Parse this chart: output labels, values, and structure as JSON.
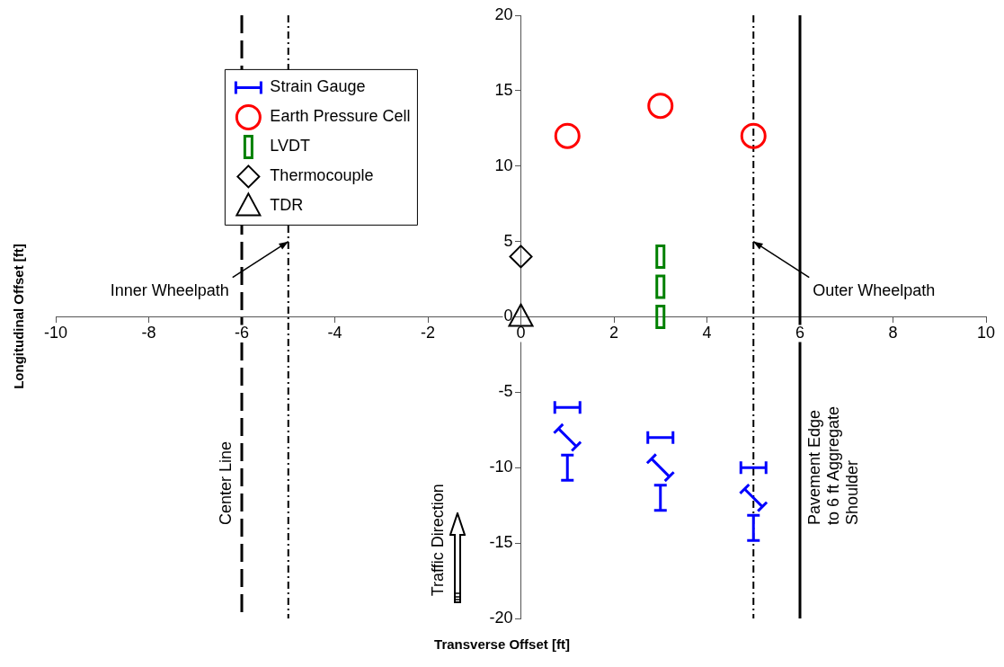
{
  "chart_data": {
    "type": "scatter",
    "xlabel": "Transverse Offset [ft]",
    "ylabel": "Longitudinal Offset [ft]",
    "series": [
      {
        "name": "Strain Gauge",
        "color": "#0000ff",
        "x": [
          1,
          3,
          5
        ],
        "values": [
          -6,
          -8,
          -10
        ]
      },
      {
        "color": "#0000ff",
        "x": [
          1,
          3,
          5
        ],
        "values": [
          -8,
          -10,
          -12
        ]
      },
      {
        "color": "#0000ff",
        "x": [
          1,
          3,
          5
        ],
        "values": [
          -10,
          -12,
          -14
        ]
      },
      {
        "name": "Earth Pressure Cell",
        "color": "#ff0000",
        "marker": "circle",
        "x": [
          1,
          3,
          5
        ],
        "values": [
          12,
          14,
          12
        ]
      },
      {
        "name": "LVDT",
        "color": "#008000",
        "marker": "square",
        "x": [
          3,
          3,
          3
        ],
        "values": [
          0,
          2,
          4
        ]
      },
      {
        "name": "Thermocouple",
        "color": "#000000",
        "marker": "diamond",
        "x": [
          0
        ],
        "values": [
          4
        ]
      },
      {
        "name": "TDR",
        "color": "#000000",
        "marker": "triangle",
        "x": [
          0
        ],
        "values": [
          0
        ]
      }
    ],
    "xlim": [
      -10,
      10
    ],
    "xticks": [
      -10,
      -8,
      -6,
      -4,
      -2,
      0,
      2,
      4,
      6,
      8,
      10
    ],
    "ylim": [
      -20,
      20
    ],
    "yticks": [
      -20,
      -15,
      -10,
      -5,
      0,
      5,
      10,
      15,
      20
    ],
    "ref_lines": [
      {
        "axis": "x",
        "value": -6,
        "label": "Center Line",
        "color": "#000000",
        "line_style": "dashed"
      },
      {
        "axis": "x",
        "value": -5,
        "color": "#000000",
        "line_style": "dashdot"
      },
      {
        "axis": "x",
        "value": 5,
        "color": "#000000",
        "line_style": "dashdot"
      },
      {
        "axis": "x",
        "value": 6,
        "label": "Pavement Edge\nto 6 ft Aggregate\nShoulder",
        "color": "#000000",
        "line_style": "solid"
      }
    ],
    "annotations": [
      {
        "text": "Inner Wheelpath",
        "x": -5,
        "y": 5
      },
      {
        "text": "Outer Wheelpath",
        "x": 5,
        "y": 5
      },
      "Traffic Direction"
    ],
    "legend": "top left"
  }
}
